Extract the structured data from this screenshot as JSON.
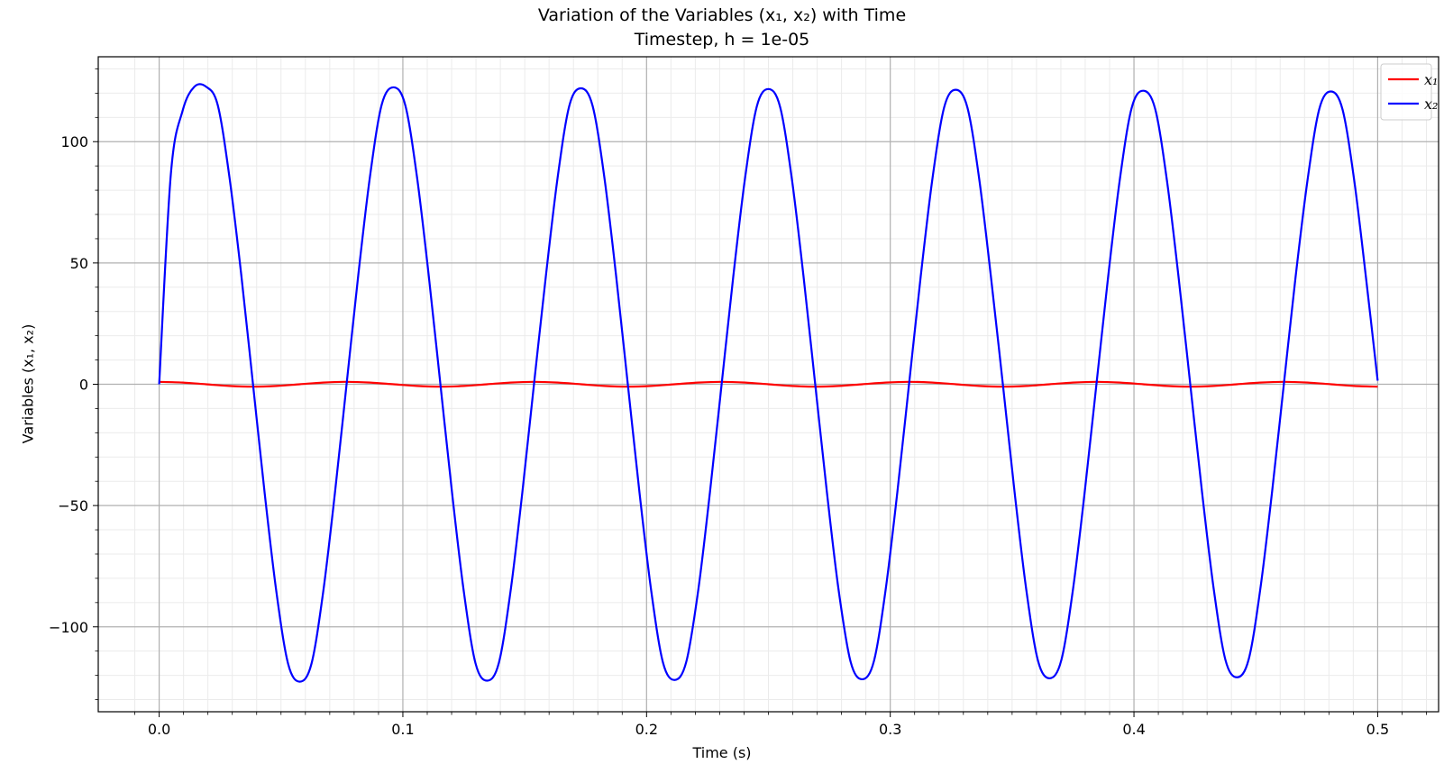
{
  "chart_data": {
    "type": "line",
    "title": "Variation of the Variables (x₁, x₂) with Time",
    "subtitle": "Timestep, h = 1e-05",
    "xlabel": "Time (s)",
    "ylabel": "Variables (x₁, x₂)",
    "xlim": [
      -0.025,
      0.525
    ],
    "ylim": [
      -135,
      135
    ],
    "xticks": [
      0.0,
      0.1,
      0.2,
      0.3,
      0.4,
      0.5
    ],
    "xtick_labels": [
      "0.0",
      "0.1",
      "0.2",
      "0.3",
      "0.4",
      "0.5"
    ],
    "yticks": [
      -100,
      -50,
      0,
      50,
      100
    ],
    "ytick_labels": [
      "−100",
      "−50",
      "0",
      "50",
      "100"
    ],
    "grid": "major and minor",
    "legend_position": "top-right",
    "series": [
      {
        "name": "x₁",
        "color": "#ff0000",
        "x": [
          0.0,
          0.0096,
          0.0192,
          0.0288,
          0.0385,
          0.0481,
          0.0577,
          0.0673,
          0.0769,
          0.0865,
          0.0962,
          0.1058,
          0.1154,
          0.125,
          0.1346,
          0.1442,
          0.1538,
          0.1635,
          0.1731,
          0.1827,
          0.1923,
          0.2019,
          0.2115,
          0.2212,
          0.2308,
          0.2404,
          0.25,
          0.2596,
          0.2692,
          0.2788,
          0.2885,
          0.2981,
          0.3077,
          0.3173,
          0.3269,
          0.3365,
          0.3462,
          0.3558,
          0.3654,
          0.375,
          0.3846,
          0.3942,
          0.4038,
          0.4135,
          0.4231,
          0.4327,
          0.4423,
          0.4519,
          0.4615,
          0.4712,
          0.4808,
          0.4904,
          0.5
        ],
        "y": [
          1.0,
          0.71,
          0.0,
          -0.71,
          -1.0,
          -0.71,
          0.0,
          0.71,
          1.0,
          0.71,
          0.0,
          -0.71,
          -1.0,
          -0.71,
          0.0,
          0.71,
          1.0,
          0.71,
          0.0,
          -0.71,
          -1.0,
          -0.71,
          0.0,
          0.71,
          1.0,
          0.71,
          0.0,
          -0.71,
          -1.0,
          -0.71,
          0.0,
          0.71,
          1.0,
          0.71,
          0.0,
          -0.71,
          -1.0,
          -0.71,
          0.0,
          0.71,
          1.0,
          0.71,
          0.0,
          -0.71,
          -1.0,
          -0.71,
          0.0,
          0.71,
          1.0,
          0.71,
          0.0,
          -0.71,
          -1.0
        ]
      },
      {
        "name": "x₂",
        "color": "#0000ff",
        "x": [
          0.0,
          0.0048,
          0.0096,
          0.0144,
          0.0192,
          0.024,
          0.0288,
          0.0337,
          0.0385,
          0.0433,
          0.0481,
          0.0529,
          0.0577,
          0.0625,
          0.0673,
          0.0721,
          0.0769,
          0.0817,
          0.0865,
          0.0913,
          0.0962,
          0.101,
          0.1058,
          0.1106,
          0.1154,
          0.1202,
          0.125,
          0.1298,
          0.1346,
          0.1394,
          0.1442,
          0.149,
          0.1538,
          0.1587,
          0.1635,
          0.1683,
          0.1731,
          0.1779,
          0.1827,
          0.1875,
          0.1923,
          0.1971,
          0.2019,
          0.2067,
          0.2115,
          0.2163,
          0.2212,
          0.226,
          0.2308,
          0.2356,
          0.2404,
          0.2452,
          0.25,
          0.2548,
          0.2596,
          0.2644,
          0.2692,
          0.274,
          0.2788,
          0.2837,
          0.2885,
          0.2933,
          0.2981,
          0.3029,
          0.3077,
          0.3125,
          0.3173,
          0.3221,
          0.3269,
          0.3317,
          0.3365,
          0.3413,
          0.3462,
          0.351,
          0.3558,
          0.3606,
          0.3654,
          0.3702,
          0.375,
          0.3798,
          0.3846,
          0.3894,
          0.3942,
          0.399,
          0.4038,
          0.4087,
          0.4135,
          0.4183,
          0.4231,
          0.4279,
          0.4327,
          0.4375,
          0.4423,
          0.4471,
          0.4519,
          0.4567,
          0.4615,
          0.4663,
          0.4712,
          0.476,
          0.4808,
          0.4856,
          0.4904,
          0.4952,
          0.5
        ],
        "y": [
          0.0,
          86.7,
          112.7,
          122.6,
          122.7,
          115.2,
          85.6,
          45.0,
          0.0,
          -45.0,
          -85.6,
          -115.2,
          -122.6,
          -115.2,
          -85.6,
          -45.0,
          0.0,
          45.0,
          85.6,
          115.2,
          122.4,
          115.0,
          85.4,
          44.9,
          0.0,
          -44.9,
          -85.4,
          -115.0,
          -122.2,
          -114.8,
          -85.2,
          -44.8,
          0.0,
          44.8,
          85.2,
          114.8,
          122.0,
          114.6,
          85.1,
          44.7,
          0.0,
          -44.7,
          -85.1,
          -114.6,
          -121.9,
          -114.4,
          -84.9,
          -44.6,
          0.0,
          44.6,
          84.9,
          114.4,
          121.7,
          114.3,
          84.8,
          44.5,
          0.0,
          -44.5,
          -84.8,
          -114.3,
          -121.6,
          -114.1,
          -84.7,
          -44.5,
          0.0,
          44.5,
          84.7,
          114.1,
          121.4,
          113.9,
          84.6,
          44.4,
          0.0,
          -44.4,
          -84.6,
          -113.9,
          -121.2,
          -113.7,
          -84.4,
          -44.3,
          0.0,
          44.3,
          84.4,
          113.7,
          121.0,
          113.5,
          84.2,
          44.2,
          0.0,
          -44.2,
          -84.2,
          -113.5,
          -120.8,
          -113.3,
          -84.0,
          -44.1,
          0.0,
          44.1,
          84.0,
          113.3,
          120.7,
          113.2,
          83.9,
          44.0,
          1.5
        ]
      }
    ]
  }
}
